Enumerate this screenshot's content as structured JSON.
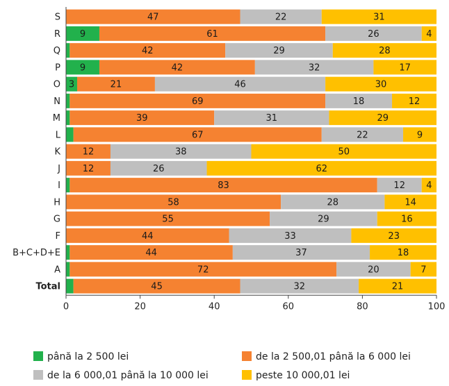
{
  "chart_data": {
    "type": "bar",
    "orientation": "horizontal",
    "stacked": true,
    "categories": [
      "S",
      "R",
      "Q",
      "P",
      "O",
      "N",
      "M",
      "L",
      "K",
      "J",
      "I",
      "H",
      "G",
      "F",
      "B+C+D+E",
      "A",
      "Total"
    ],
    "series": [
      {
        "name": "până la 2 500 lei",
        "color": "#22b14c",
        "values": [
          0,
          9,
          1,
          9,
          3,
          1,
          1,
          2,
          0,
          0,
          1,
          0,
          0,
          0,
          1,
          1,
          2
        ]
      },
      {
        "name": "de la 2 500,01 până la 6 000 lei",
        "color": "#f58231",
        "values": [
          47,
          61,
          42,
          42,
          21,
          69,
          39,
          67,
          12,
          12,
          83,
          58,
          55,
          44,
          44,
          72,
          45
        ]
      },
      {
        "name": "de la 6 000,01 până la 10 000 lei",
        "color": "#bfbfbf",
        "values": [
          22,
          26,
          29,
          32,
          46,
          18,
          31,
          22,
          38,
          26,
          12,
          28,
          29,
          33,
          37,
          20,
          32
        ]
      },
      {
        "name": "peste 10 000,01 lei",
        "color": "#ffc000",
        "values": [
          31,
          4,
          28,
          17,
          30,
          12,
          29,
          9,
          50,
          62,
          4,
          14,
          16,
          23,
          18,
          7,
          21
        ]
      }
    ],
    "xlim": [
      0,
      100
    ],
    "xticks": [
      "0",
      "20",
      "40",
      "60",
      "80",
      "100"
    ],
    "title": "",
    "xlabel": "",
    "ylabel": "",
    "grid": false,
    "legend_position": "bottom"
  }
}
